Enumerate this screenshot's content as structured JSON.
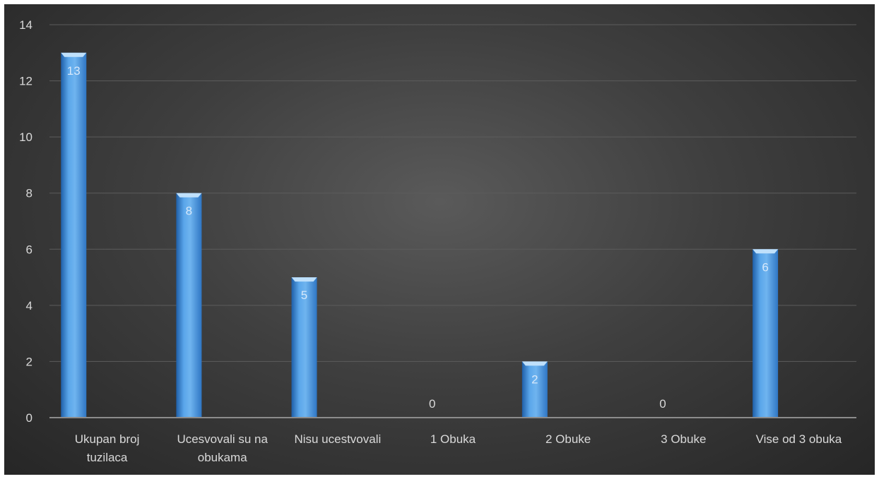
{
  "chart_data": {
    "type": "bar",
    "title": "",
    "xlabel": "",
    "ylabel": "",
    "categories": [
      [
        "Ukupan broj",
        "tuzilaca"
      ],
      [
        "Ucesvovali su na",
        "obukama"
      ],
      [
        "Nisu ucestvovali"
      ],
      [
        "1 Obuka"
      ],
      [
        "2 Obuke"
      ],
      [
        "3 Obuke"
      ],
      [
        "Vise od 3 obuka"
      ]
    ],
    "values": [
      13,
      8,
      5,
      0,
      2,
      0,
      6
    ],
    "data_labels": [
      "13",
      "8",
      "5",
      "0",
      "2",
      "0",
      "6"
    ],
    "ylim": [
      0,
      14
    ],
    "yticks": [
      "0",
      "2",
      "4",
      "6",
      "8",
      "10",
      "12",
      "14"
    ],
    "grid": true,
    "legend": "none",
    "colors": {
      "bar_light": "#6fb4ef",
      "bar_mid": "#3f8fdc",
      "bar_dark": "#1f5fa8",
      "bar_top": "#bfe0fb",
      "label_on_bar": "#d6e8fb",
      "label_zero": "#d9d9d9",
      "grid": "#5c5c5c",
      "axis": "#8c8c8c"
    }
  }
}
